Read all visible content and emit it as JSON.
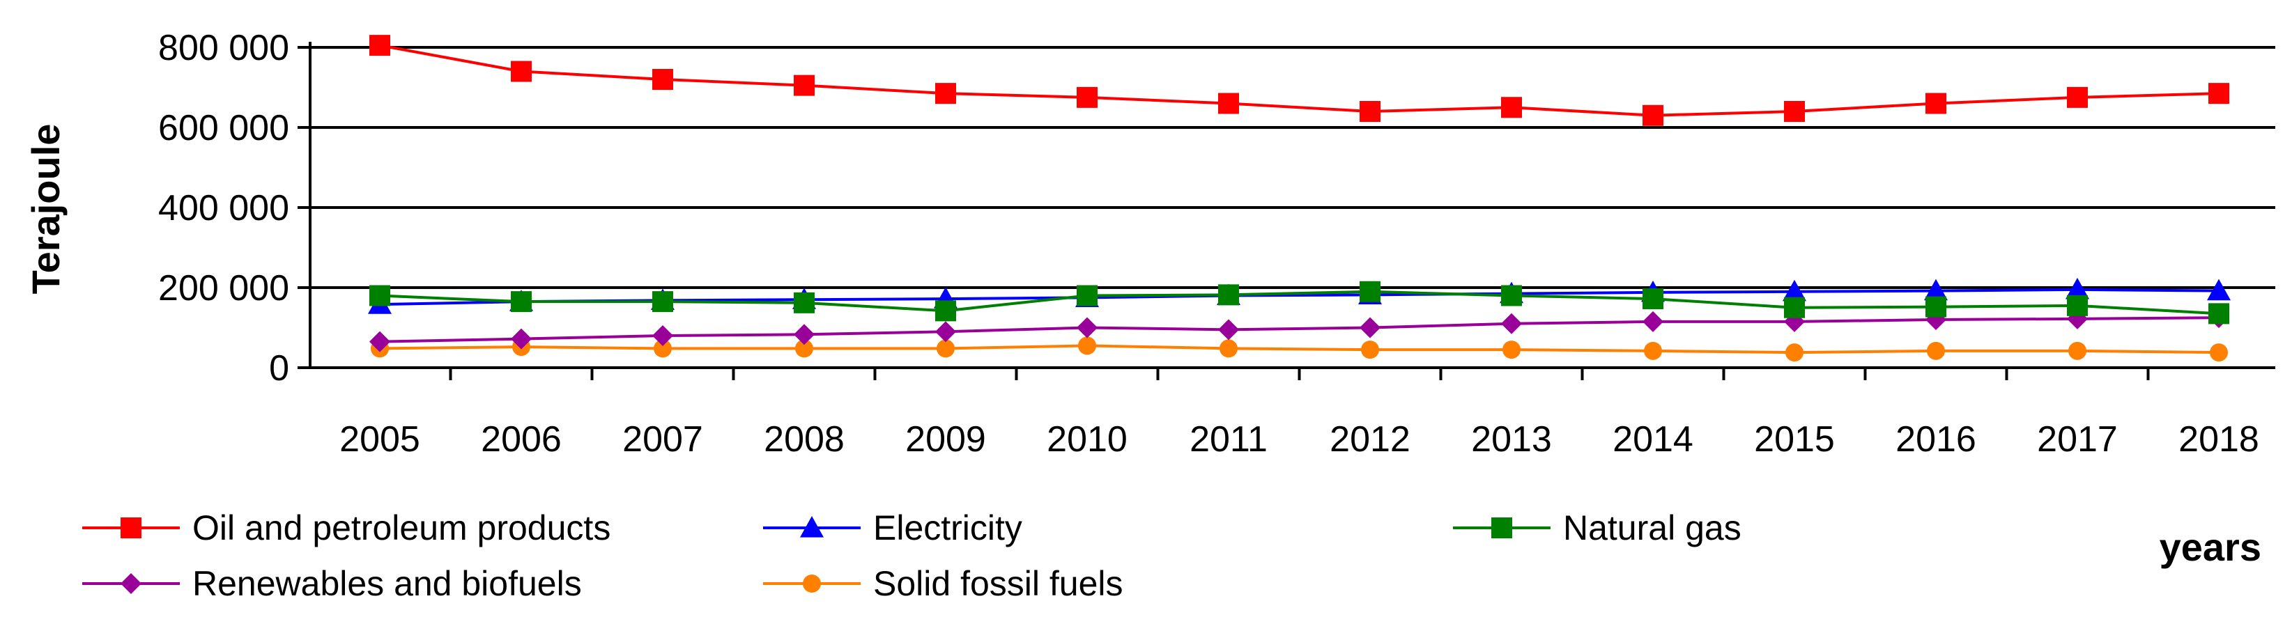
{
  "chart_data": {
    "type": "line",
    "title": "",
    "xlabel": "years",
    "ylabel": "Terajoule",
    "categories": [
      "2005",
      "2006",
      "2007",
      "2008",
      "2009",
      "2010",
      "2011",
      "2012",
      "2013",
      "2014",
      "2015",
      "2016",
      "2017",
      "2018"
    ],
    "ylim": [
      0,
      800000
    ],
    "yticks": [
      0,
      200000,
      400000,
      600000,
      800000
    ],
    "ytick_labels": [
      "0",
      "200 000",
      "400 000",
      "600 000",
      "800 000"
    ],
    "grid": "horizontal",
    "legend_position": "bottom",
    "series": [
      {
        "key": "oil",
        "name": "Oil and petroleum products",
        "color": "#ff0000",
        "marker": "square",
        "values": [
          805000,
          740000,
          720000,
          705000,
          685000,
          675000,
          660000,
          640000,
          650000,
          630000,
          640000,
          660000,
          675000,
          685000
        ]
      },
      {
        "key": "electricity",
        "name": "Electricity",
        "color": "#0000ff",
        "marker": "triangle",
        "values": [
          158000,
          165000,
          168000,
          170000,
          172000,
          175000,
          180000,
          182000,
          185000,
          188000,
          190000,
          192000,
          195000,
          192000
        ]
      },
      {
        "key": "gas",
        "name": "Natural gas",
        "color": "#008000",
        "marker": "square",
        "values": [
          180000,
          165000,
          165000,
          162000,
          142000,
          180000,
          182000,
          190000,
          180000,
          172000,
          150000,
          152000,
          155000,
          135000
        ]
      },
      {
        "key": "renewables",
        "name": "Renewables and biofuels",
        "color": "#990099",
        "marker": "diamond",
        "values": [
          65000,
          72000,
          80000,
          83000,
          90000,
          100000,
          95000,
          100000,
          110000,
          115000,
          115000,
          120000,
          122000,
          125000
        ]
      },
      {
        "key": "solid",
        "name": "Solid fossil fuels",
        "color": "#ff8000",
        "marker": "circle",
        "values": [
          48000,
          52000,
          48000,
          48000,
          48000,
          55000,
          48000,
          45000,
          45000,
          42000,
          38000,
          42000,
          42000,
          38000
        ]
      }
    ]
  }
}
